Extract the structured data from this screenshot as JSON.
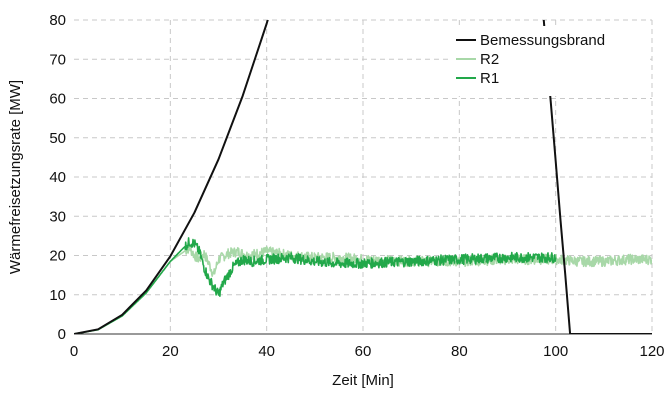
{
  "chart_data": {
    "type": "line",
    "title": "",
    "xlabel": "Zeit [Min]",
    "ylabel": "Wärmefreisetzungsrate [MW]",
    "xlim": [
      0,
      120
    ],
    "ylim": [
      0,
      80
    ],
    "x_ticks": [
      0,
      20,
      40,
      60,
      80,
      100,
      120
    ],
    "y_ticks": [
      0,
      10,
      20,
      30,
      40,
      50,
      60,
      70,
      80
    ],
    "grid": "dashed",
    "legend_position": "top-right",
    "series": [
      {
        "name": "Bemessungsbrand",
        "color": "#111111",
        "segments": [
          {
            "x": [
              0,
              5,
              10,
              15,
              20,
              25,
              30,
              35,
              40,
              45
            ],
            "y": [
              0,
              1.2,
              4.9,
              11.1,
              19.8,
              30.9,
              44.5,
              60.6,
              79.1,
              100.1
            ]
          },
          {
            "x": [
              97,
              98,
              99,
              100,
              101,
              102,
              103,
              120
            ],
            "y": [
              88,
              73,
              59,
              44,
              29,
              15,
              0,
              0
            ]
          }
        ]
      },
      {
        "name": "R2",
        "color": "#a8d8a8",
        "x": [
          0,
          5,
          10,
          15,
          20,
          24,
          25,
          26,
          27,
          28,
          29,
          30,
          32,
          34,
          36,
          38,
          40,
          45,
          50,
          55,
          60,
          70,
          80,
          90,
          100,
          105,
          110,
          115,
          120
        ],
        "y": [
          0,
          1.1,
          4.6,
          10.5,
          18.5,
          22.0,
          20.0,
          19.0,
          20.5,
          18.0,
          15.0,
          19.0,
          20.5,
          21.0,
          20.0,
          20.5,
          21.0,
          20.0,
          19.5,
          19.5,
          19.0,
          18.5,
          18.5,
          19.0,
          19.0,
          18.5,
          18.5,
          19.0,
          19.0
        ],
        "noise": 1.3
      },
      {
        "name": "R1",
        "color": "#22a84a",
        "x": [
          0,
          5,
          10,
          15,
          20,
          24,
          25,
          26,
          27,
          28,
          29,
          30,
          31,
          32,
          33,
          34,
          35,
          37,
          40,
          45,
          50,
          55,
          60,
          70,
          80,
          90,
          100
        ],
        "y": [
          0,
          1.1,
          4.6,
          10.5,
          18.5,
          23.5,
          23.0,
          21.0,
          17.0,
          14.0,
          12.0,
          10.0,
          13.0,
          15.0,
          17.0,
          18.0,
          19.0,
          18.5,
          19.0,
          19.5,
          18.5,
          18.0,
          18.0,
          18.5,
          19.0,
          19.5,
          19.5
        ],
        "noise": 1.3
      }
    ]
  }
}
